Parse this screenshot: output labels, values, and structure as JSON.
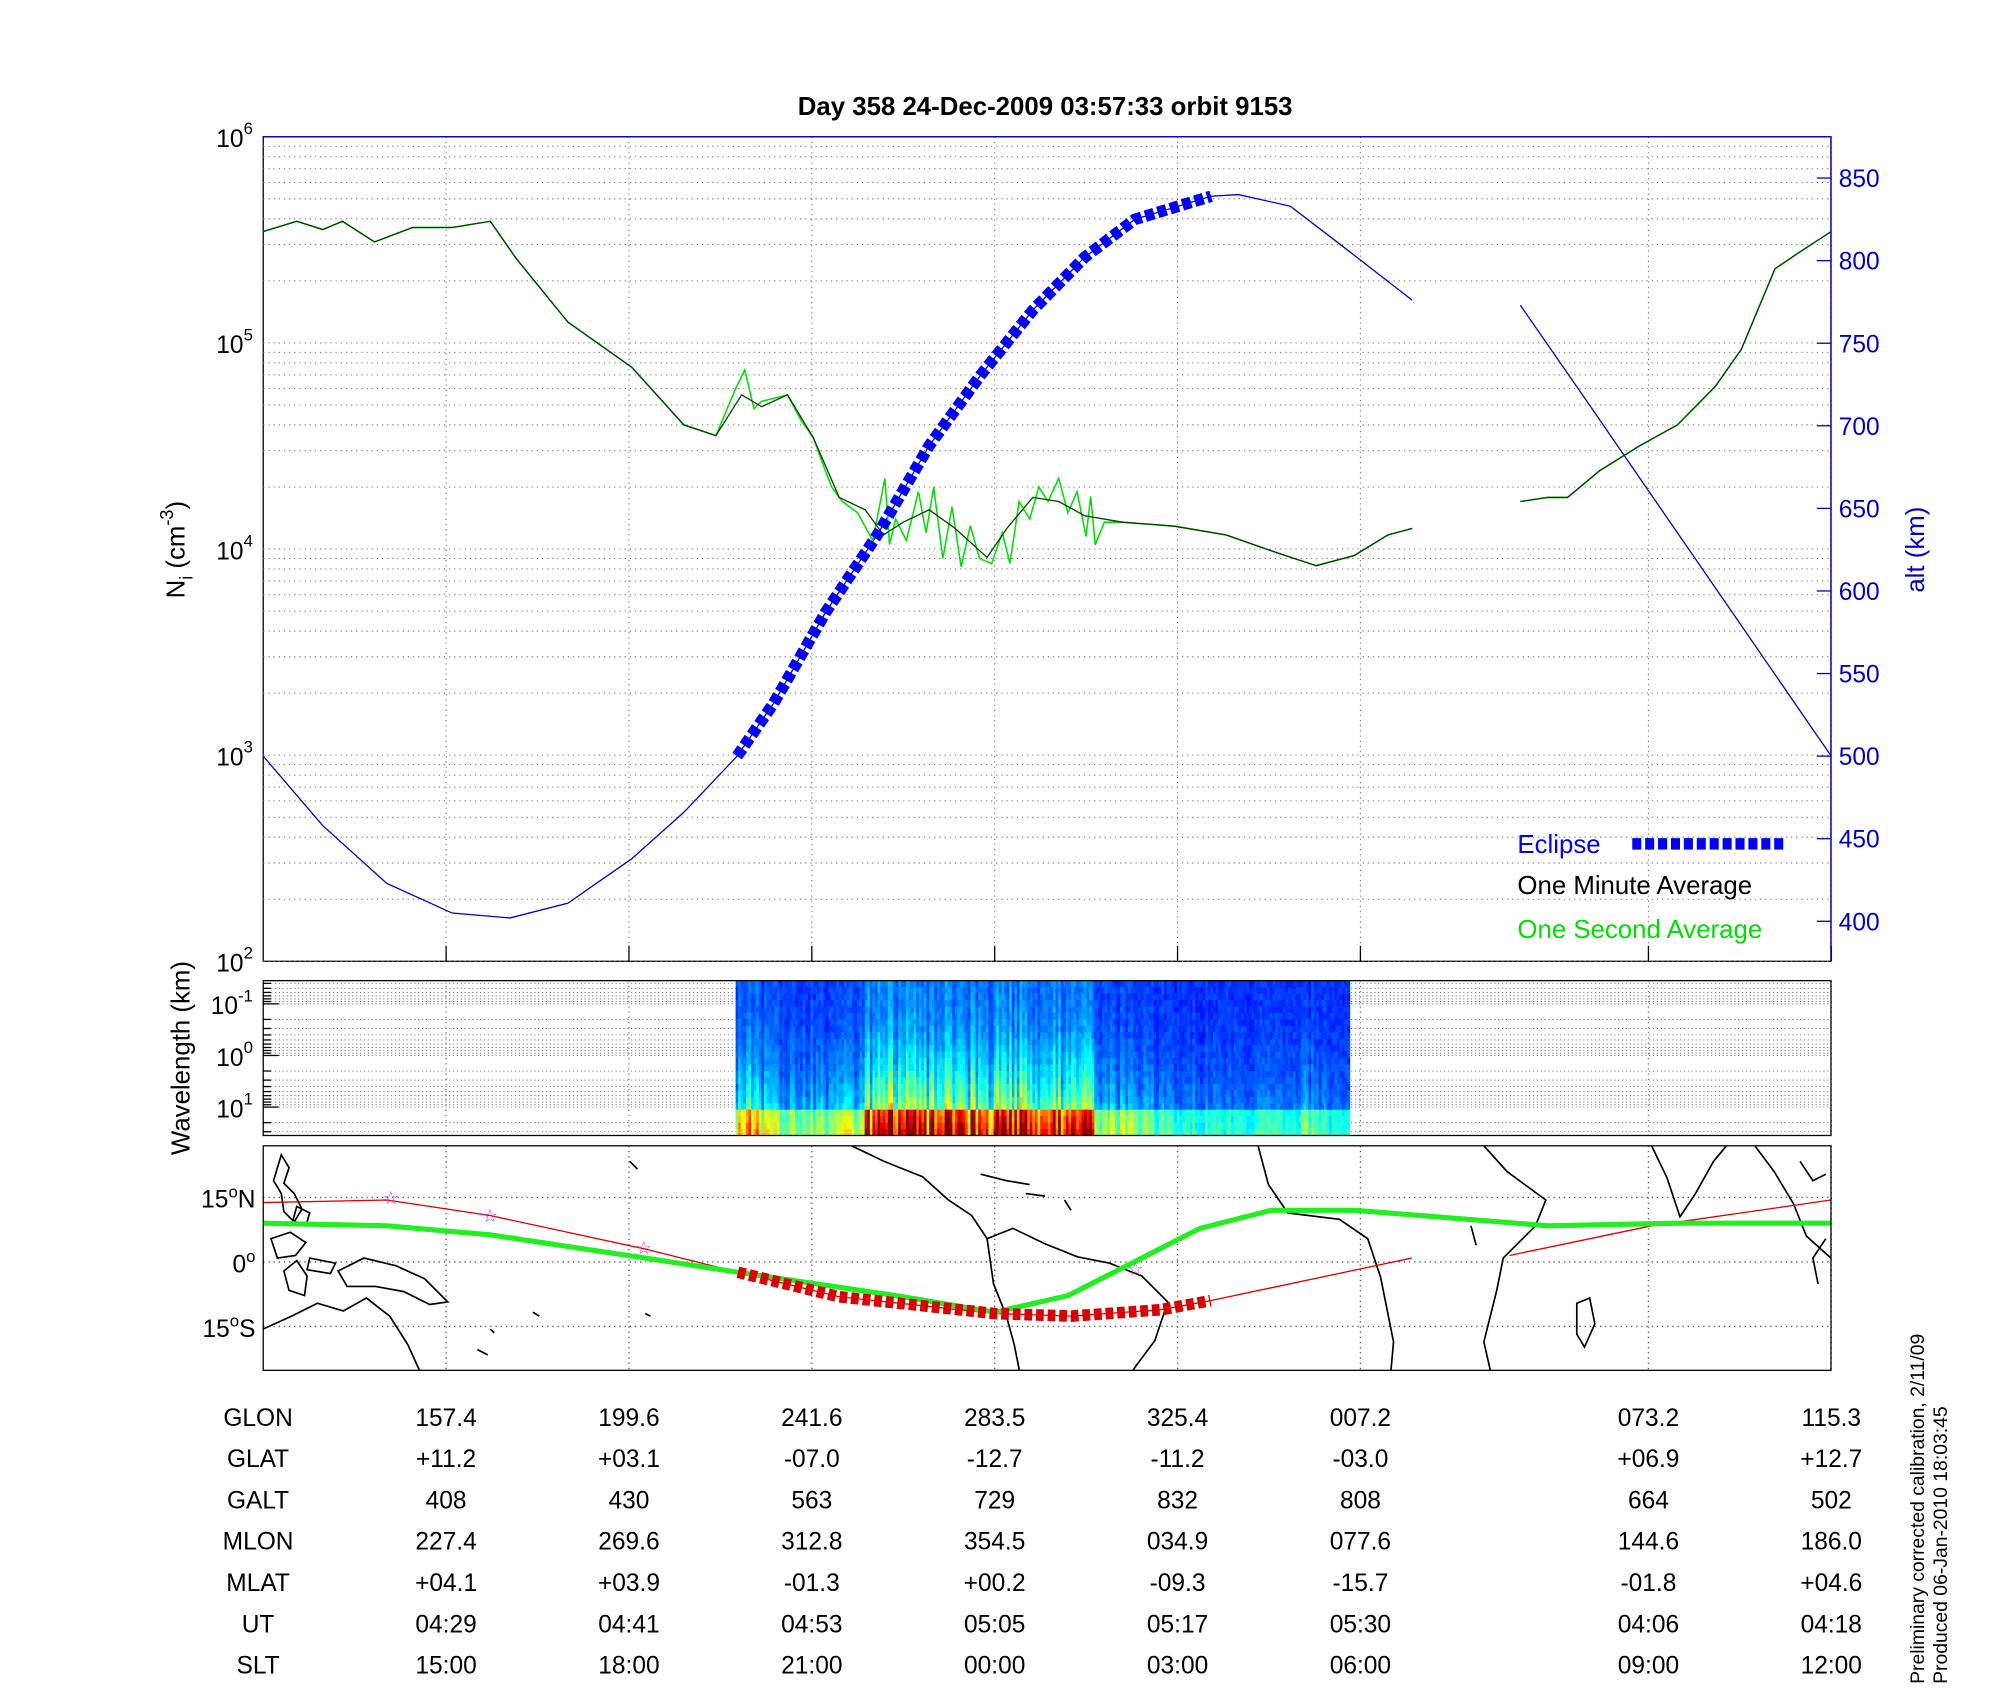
{
  "title": "Day 358  24-Dec-2009 03:57:33   orbit 9153",
  "footer": {
    "line1": "Preliminary corrected calibration, 2/11/09",
    "line2": "Produced 06-Jan-2010 18:03:45"
  },
  "colors": {
    "eclipse": "#0000ff",
    "minute": "#004000",
    "second": "#00e000",
    "alt": "#0000cc",
    "track": "#dd0000",
    "magnetic_equator": "#22ee22",
    "star": "#cc33cc"
  },
  "chart_data": [
    {
      "type": "line",
      "name": "density-altitude",
      "x_unit": "minutes from plot start",
      "xlim": [
        0,
        102.9
      ],
      "x_ticks": [
        12,
        24,
        36,
        48,
        60,
        72,
        90.9,
        102.9
      ],
      "y_left": {
        "label": {
          "main": "N",
          "sub": "i",
          "pre": " (cm",
          "sup": "-3",
          "post": ")"
        },
        "scale": "log",
        "ylim": [
          100,
          1000000
        ],
        "ticks": [
          {
            "value": 1000000,
            "base": "10",
            "exp": "6"
          },
          {
            "value": 100000,
            "base": "10",
            "exp": "5"
          },
          {
            "value": 10000,
            "base": "10",
            "exp": "4"
          },
          {
            "value": 1000,
            "base": "10",
            "exp": "3"
          },
          {
            "value": 100,
            "base": "10",
            "exp": "2"
          }
        ]
      },
      "y_right": {
        "label": "alt (km)",
        "ylim": [
          376,
          875
        ],
        "ticks": [
          "400",
          "450",
          "500",
          "550",
          "600",
          "650",
          "700",
          "750",
          "800",
          "850"
        ]
      },
      "grid": true,
      "legend": {
        "placement": "bottom-right",
        "entries": [
          {
            "label": "Eclipse",
            "series": "eclipse"
          },
          {
            "label": "One Minute Average",
            "series": "minute"
          },
          {
            "label": "One Second Average",
            "series": "second"
          }
        ]
      },
      "series": {
        "minute": [
          [
            0,
            347000
          ],
          [
            2.2,
            389000
          ],
          [
            3.9,
            355000
          ],
          [
            5.2,
            389000
          ],
          [
            7.3,
            309000
          ],
          [
            9.8,
            363000
          ],
          [
            12.4,
            363000
          ],
          [
            14.9,
            389000
          ],
          [
            16.6,
            257000
          ],
          [
            20.0,
            126000
          ],
          [
            24.2,
            76000
          ],
          [
            27.6,
            40000
          ],
          [
            29.7,
            35500
          ],
          [
            31.4,
            56000
          ],
          [
            32.7,
            49000
          ],
          [
            34.4,
            56000
          ],
          [
            36.1,
            34700
          ],
          [
            37.8,
            17800
          ],
          [
            39.5,
            15500
          ],
          [
            40.7,
            11700
          ],
          [
            42.0,
            13500
          ],
          [
            43.7,
            15500
          ],
          [
            45.4,
            12600
          ],
          [
            47.5,
            9100
          ],
          [
            48.8,
            12600
          ],
          [
            50.5,
            17800
          ],
          [
            52.2,
            17000
          ],
          [
            53.9,
            14500
          ],
          [
            56.4,
            13500
          ],
          [
            59.8,
            12900
          ],
          [
            63.2,
            11700
          ],
          [
            66.6,
            9550
          ],
          [
            69.1,
            8300
          ],
          [
            71.6,
            9300
          ],
          [
            73.8,
            11700
          ],
          [
            75.4,
            12600
          ],
          null,
          [
            82.5,
            17000
          ],
          [
            84.3,
            17800
          ],
          [
            85.6,
            17800
          ],
          [
            87.7,
            24000
          ],
          [
            90.3,
            31600
          ],
          [
            92.8,
            40000
          ],
          [
            95.3,
            61700
          ],
          [
            97.0,
            93300
          ],
          [
            99.2,
            229000
          ],
          [
            100.8,
            275000
          ],
          [
            102.9,
            347000
          ]
        ],
        "second": [
          [
            0,
            347000
          ],
          [
            2.2,
            389000
          ],
          [
            3.9,
            355000
          ],
          [
            5.2,
            389000
          ],
          [
            7.3,
            309000
          ],
          [
            9.8,
            363000
          ],
          [
            12.4,
            363000
          ],
          [
            14.9,
            389000
          ],
          [
            16.6,
            257000
          ],
          [
            20.0,
            126000
          ],
          [
            24.2,
            76000
          ],
          [
            27.6,
            40000
          ],
          [
            29.7,
            35500
          ],
          [
            31.0,
            60000
          ],
          [
            31.6,
            74000
          ],
          [
            32.2,
            48000
          ],
          [
            32.7,
            52000
          ],
          [
            34.4,
            56000
          ],
          [
            35.3,
            42000
          ],
          [
            36.1,
            34700
          ],
          [
            36.8,
            25000
          ],
          [
            37.3,
            20000
          ],
          [
            38,
            17000
          ],
          [
            39,
            15000
          ],
          [
            40,
            11000
          ],
          [
            40.8,
            22000
          ],
          [
            41.1,
            10500
          ],
          [
            41.5,
            14000
          ],
          [
            42.2,
            11000
          ],
          [
            43,
            19000
          ],
          [
            43.5,
            12000
          ],
          [
            44,
            20000
          ],
          [
            44.6,
            9000
          ],
          [
            45.2,
            16000
          ],
          [
            45.8,
            8200
          ],
          [
            46.4,
            13000
          ],
          [
            47,
            9000
          ],
          [
            47.8,
            8500
          ],
          [
            48.5,
            12000
          ],
          [
            49,
            8500
          ],
          [
            49.6,
            17000
          ],
          [
            50.3,
            14000
          ],
          [
            50.9,
            20000
          ],
          [
            51.5,
            17000
          ],
          [
            52.2,
            22000
          ],
          [
            52.8,
            15000
          ],
          [
            53.4,
            19000
          ],
          [
            54,
            11500
          ],
          [
            54.3,
            18000
          ],
          [
            54.6,
            10500
          ],
          [
            55.2,
            13500
          ],
          [
            56.4,
            13500
          ],
          [
            59.8,
            12900
          ],
          [
            63.2,
            11700
          ],
          [
            66.6,
            9550
          ],
          [
            69.1,
            8300
          ],
          [
            71.6,
            9300
          ],
          [
            73.8,
            11700
          ],
          [
            75.4,
            12600
          ],
          null,
          [
            82.5,
            17000
          ],
          [
            84.3,
            17800
          ],
          [
            85.6,
            17800
          ],
          [
            87.7,
            24000
          ],
          [
            90.3,
            31600
          ],
          [
            92.8,
            40000
          ],
          [
            95.3,
            61700
          ],
          [
            97.0,
            93300
          ],
          [
            99.2,
            229000
          ],
          [
            100.8,
            275000
          ],
          [
            102.9,
            347000
          ]
        ],
        "altitude": [
          [
            0,
            500
          ],
          [
            3.9,
            458
          ],
          [
            8.1,
            423
          ],
          [
            12.4,
            405
          ],
          [
            16.2,
            402
          ],
          [
            20.0,
            411
          ],
          [
            24.2,
            438
          ],
          [
            27.6,
            466
          ],
          [
            31.1,
            500
          ],
          [
            33.5,
            532
          ],
          [
            36.9,
            587
          ],
          [
            40.3,
            634
          ],
          [
            43.7,
            688
          ],
          [
            47.1,
            731
          ],
          [
            50.5,
            770
          ],
          [
            53.9,
            802
          ],
          [
            57.2,
            825
          ],
          [
            62.2,
            839
          ],
          [
            64.0,
            840
          ],
          [
            67.4,
            833
          ],
          [
            70.8,
            809
          ],
          [
            75.4,
            776
          ],
          null,
          [
            82.5,
            773
          ],
          [
            87,
            713
          ],
          [
            92,
            646
          ],
          [
            97,
            579
          ],
          [
            102.9,
            500
          ]
        ],
        "eclipse_range": [
          31.1,
          62.2
        ]
      }
    },
    {
      "type": "heatmap",
      "name": "wavelength-spectrogram",
      "ylabel": "Wavelength (km)",
      "y_scale": "log",
      "y_ticks": [
        {
          "base": "10",
          "exp": "-1"
        },
        {
          "base": "10",
          "exp": "0"
        },
        {
          "base": "10",
          "exp": "1"
        }
      ],
      "data_xrange": [
        31.0,
        71.3
      ],
      "activity": [
        0.5,
        0.35,
        0.3,
        0.3,
        0.35,
        0.75,
        0.8,
        0.7,
        0.75,
        0.7,
        0.85,
        0.8,
        0.75,
        0.7,
        0.3,
        0.35,
        0.25,
        0.2,
        0.2,
        0.2,
        0.2,
        0.2,
        0.25,
        0.2
      ],
      "colormap": "jet"
    },
    {
      "type": "map",
      "name": "ground-track",
      "lon_range": [
        115.3,
        475.3
      ],
      "lat_range": [
        -25,
        27
      ],
      "lat_ticks": [
        {
          "lat": 15,
          "num": "15",
          "deg": "o",
          "hemi": "N"
        },
        {
          "lat": 0,
          "num": "0",
          "deg": "o",
          "hemi": ""
        },
        {
          "lat": -15,
          "num": "15",
          "deg": "o",
          "hemi": "S"
        }
      ],
      "orbit_track": [
        [
          [
            115.3,
            13.8
          ],
          [
            143.7,
            14.4
          ],
          [
            167.4,
            10.8
          ],
          [
            203.0,
            3.0
          ],
          [
            224.3,
            -2.4
          ],
          [
            247.5,
            -8.1
          ],
          [
            283.3,
            -12.0
          ],
          [
            300.8,
            -12.6
          ],
          [
            321.5,
            -11.1
          ],
          [
            332.8,
            -9.0
          ],
          [
            379.0,
            0.9
          ]
        ],
        [
          [
            401.5,
            1.5
          ],
          [
            434.1,
            8.4
          ],
          [
            475.3,
            14.4
          ]
        ]
      ],
      "eclipse_track_lon": [
        224.3,
        332.8
      ],
      "magnetic_equator": [
        [
          115.3,
          9.0
        ],
        [
          143.7,
          8.4
        ],
        [
          167.4,
          6.3
        ],
        [
          203.0,
          0.9
        ],
        [
          224.3,
          -2.4
        ],
        [
          262.3,
          -8.1
        ],
        [
          283.3,
          -11.7
        ],
        [
          300.2,
          -7.8
        ],
        [
          330.4,
          7.8
        ],
        [
          346.7,
          12.0
        ],
        [
          366.0,
          12.0
        ],
        [
          380.8,
          10.8
        ],
        [
          410.4,
          8.4
        ],
        [
          440.0,
          9.0
        ],
        [
          475.3,
          9.0
        ]
      ],
      "stars": [
        [
          144.6,
          15.0
        ],
        [
          167.4,
          10.8
        ],
        [
          202.7,
          3.3
        ],
        [
          315.6,
          -1.5
        ]
      ]
    }
  ],
  "table": {
    "rows": [
      {
        "label": "GLON",
        "values": [
          "157.4",
          "199.6",
          "241.6",
          "283.5",
          "325.4",
          "007.2",
          "073.2",
          "115.3"
        ]
      },
      {
        "label": "GLAT",
        "values": [
          "+11.2",
          "+03.1",
          "-07.0",
          "-12.7",
          "-11.2",
          "-03.0",
          "+06.9",
          "+12.7"
        ]
      },
      {
        "label": "GALT",
        "values": [
          "408",
          "430",
          "563",
          "729",
          "832",
          "808",
          "664",
          "502"
        ]
      },
      {
        "label": "MLON",
        "values": [
          "227.4",
          "269.6",
          "312.8",
          "354.5",
          "034.9",
          "077.6",
          "144.6",
          "186.0"
        ]
      },
      {
        "label": "MLAT",
        "values": [
          "+04.1",
          "+03.9",
          "-01.3",
          "+00.2",
          "-09.3",
          "-15.7",
          "-01.8",
          "+04.6"
        ]
      },
      {
        "label": "UT",
        "values": [
          "04:29",
          "04:41",
          "04:53",
          "05:05",
          "05:17",
          "05:30",
          "04:06",
          "04:18"
        ]
      },
      {
        "label": "SLT",
        "values": [
          "15:00",
          "18:00",
          "21:00",
          "00:00",
          "03:00",
          "06:00",
          "09:00",
          "12:00"
        ]
      }
    ]
  }
}
